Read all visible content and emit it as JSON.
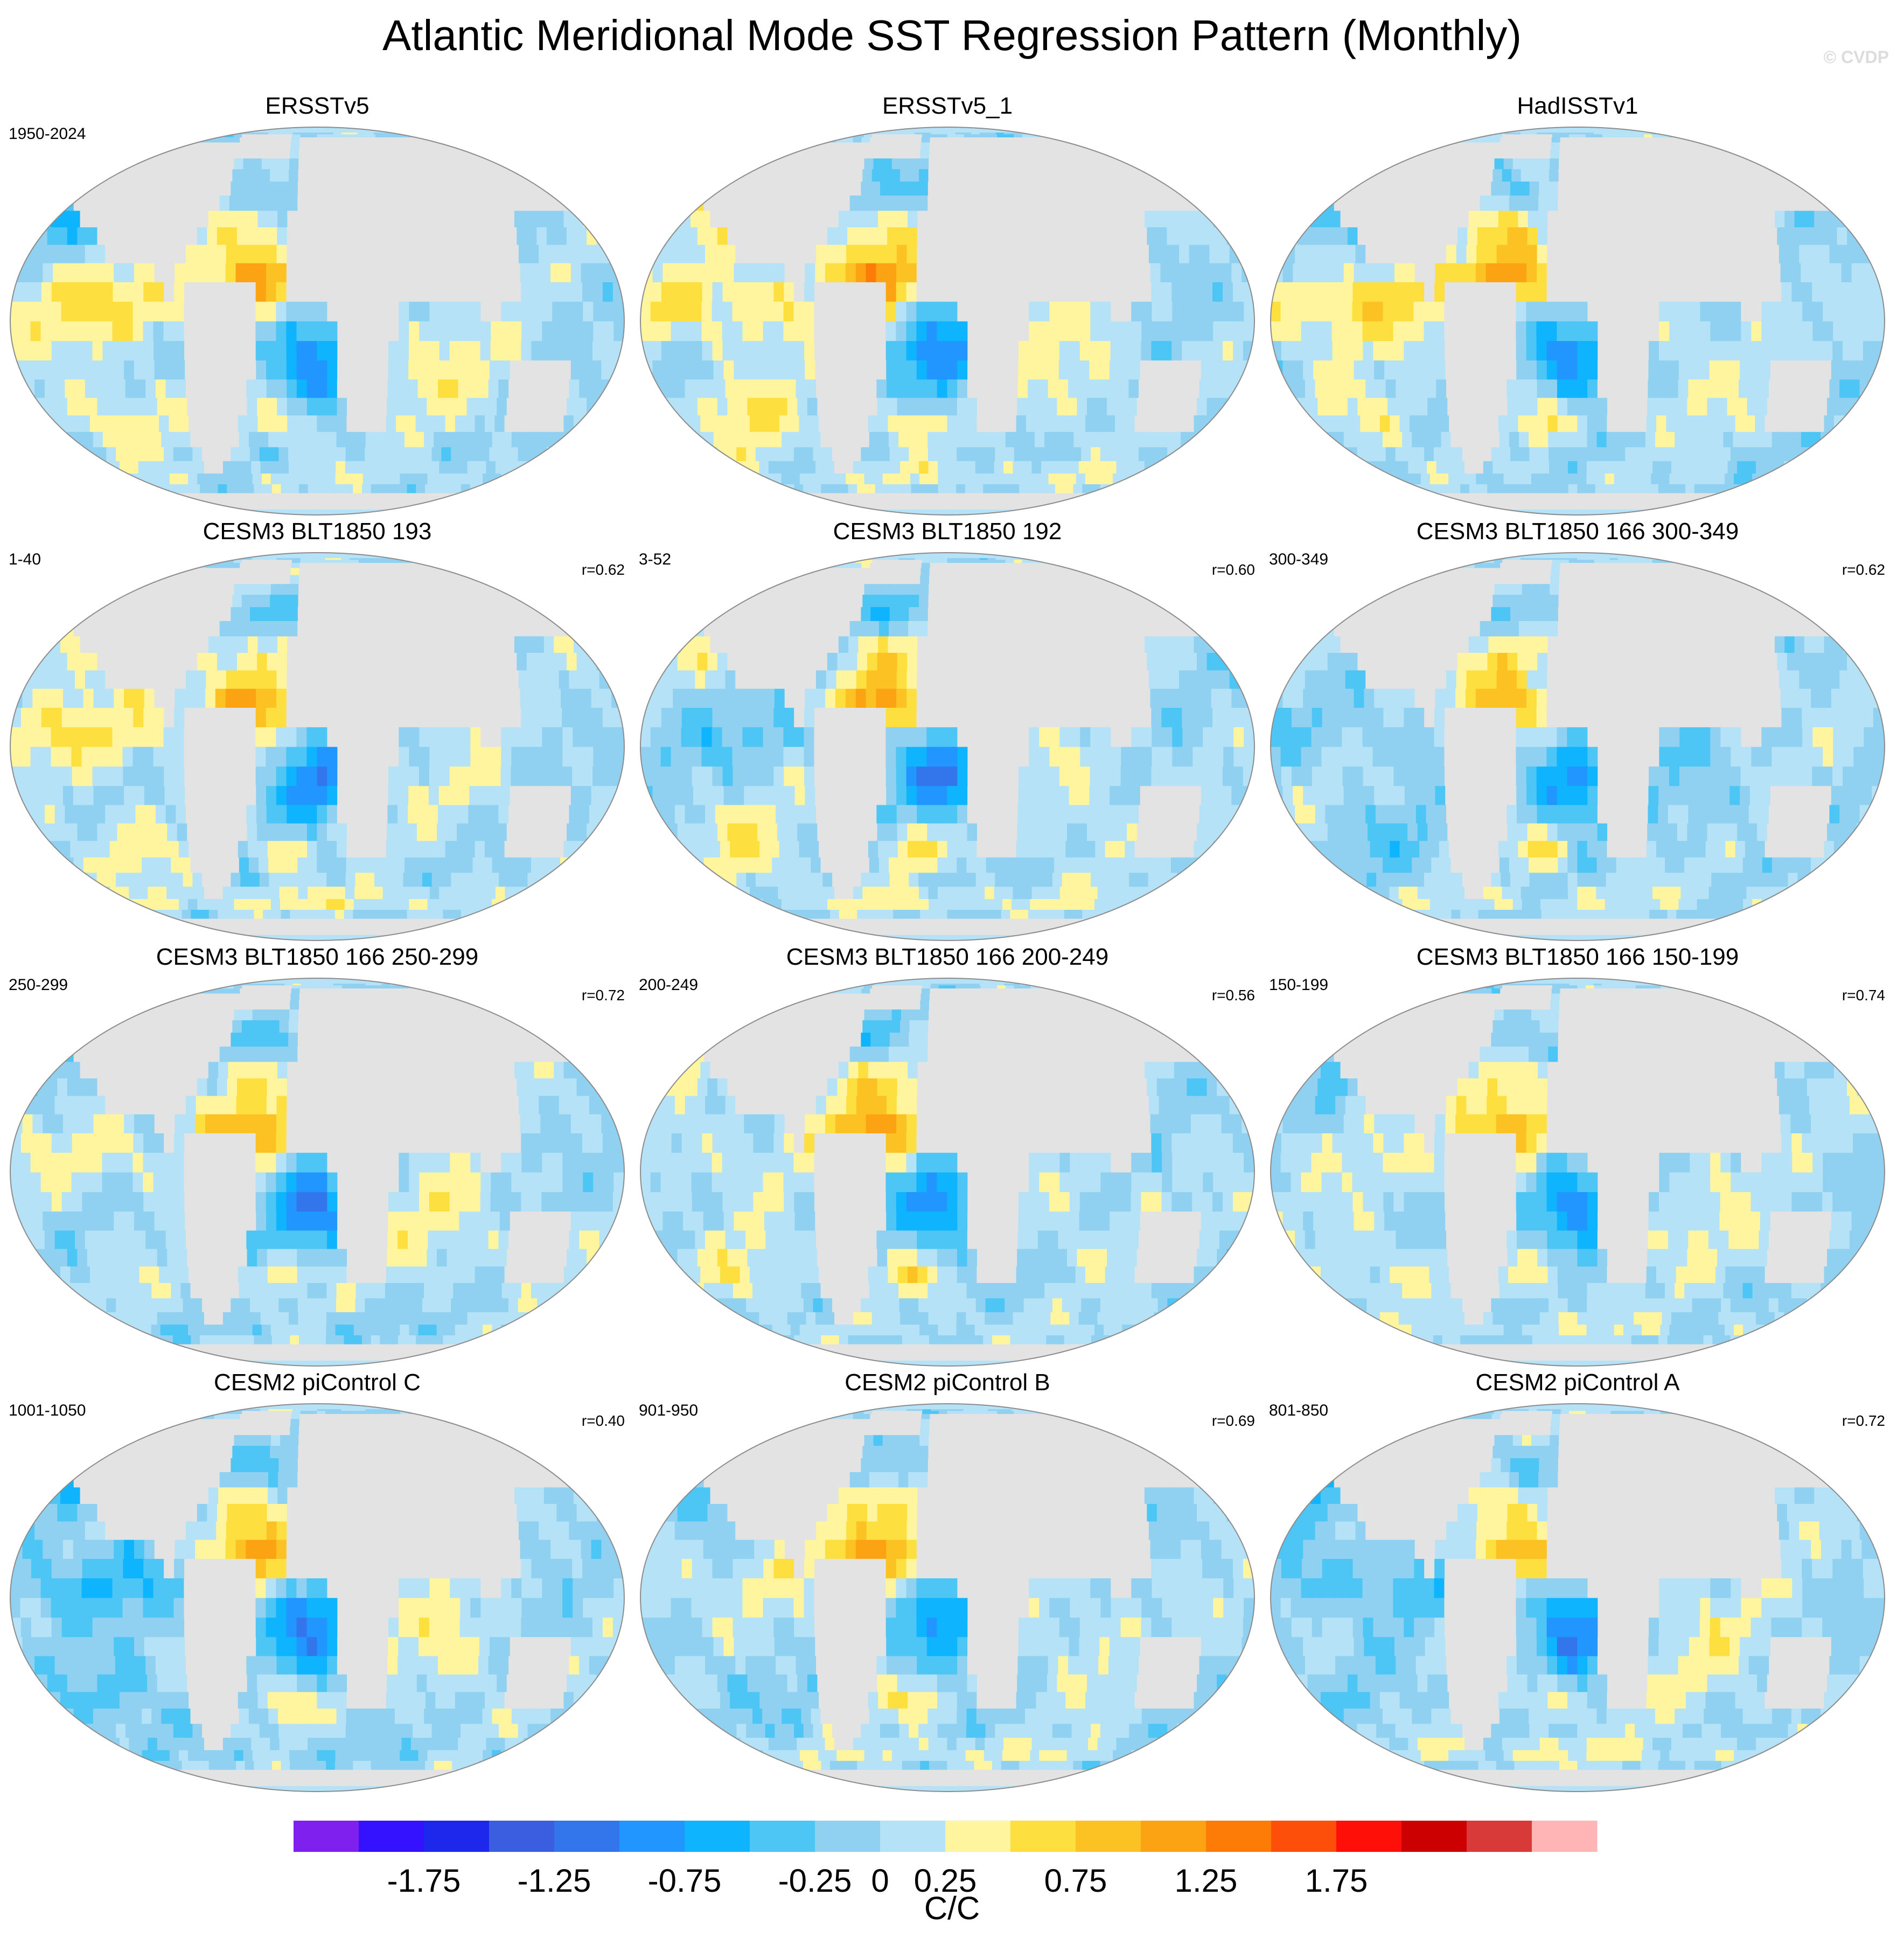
{
  "title": "Atlantic Meridional Mode SST Regression Pattern (Monthly)",
  "copyright": "© CVDP",
  "colors": {
    "land": "#e3e3e3",
    "coast": "#8c8c8c",
    "palette": [
      "#7f20ee",
      "#3412ff",
      "#1d28ec",
      "#3b5ee0",
      "#3376ec",
      "#2196ff",
      "#0fb4ff",
      "#4dc5f5",
      "#90d1f1",
      "#b5e2f6",
      "#fff59e",
      "#fde040",
      "#fcc223",
      "#fca313",
      "#fd7b07",
      "#fd4f0a",
      "#fe1008",
      "#cc0000",
      "#d83a3a",
      "#ffb5b5"
    ]
  },
  "chart_data": {
    "type": "heatmap",
    "projection": "Robinson",
    "colorbar": {
      "units": "C/C",
      "levels": [
        -2.0,
        -1.75,
        -1.5,
        -1.25,
        -1.0,
        -0.75,
        -0.5,
        -0.25,
        0,
        0.25,
        0.5,
        0.75,
        1.0,
        1.25,
        1.5,
        1.75,
        2.0
      ],
      "tick_labels": [
        "-1.75",
        "-1.25",
        "-0.75",
        "-0.25",
        "0",
        "0.25",
        "0.75",
        "1.25",
        "1.75"
      ],
      "tick_values": [
        -1.75,
        -1.25,
        -0.75,
        -0.25,
        0,
        0.25,
        0.75,
        1.25,
        1.75
      ]
    },
    "panels": [
      {
        "title": "ERSSTv5",
        "period": "1950-2024",
        "corr": "",
        "style": {
          "amp": 1.0,
          "np": -0.45,
          "tp": 0.55,
          "sp": 0.45,
          "io": 0.35,
          "so": 0.15,
          "seed": 1.0
        }
      },
      {
        "title": "ERSSTv5_1",
        "period": "",
        "corr": "",
        "style": {
          "amp": 1.0,
          "np": 0.4,
          "tp": 0.5,
          "sp": 0.5,
          "io": 0.35,
          "so": 0.25,
          "seed": 2.0
        }
      },
      {
        "title": "HadISSTv1",
        "period": "",
        "corr": "",
        "style": {
          "amp": 1.05,
          "np": -0.35,
          "tp": 0.55,
          "sp": 0.35,
          "io": 0.25,
          "so": 0.05,
          "seed": 3.0
        }
      },
      {
        "title": "CESM3 BLT1850 193",
        "period": "1-40",
        "corr": "r=0.62",
        "style": {
          "amp": 1.0,
          "np": 0.6,
          "tp": 0.45,
          "sp": 0.35,
          "io": 0.15,
          "so": 0.35,
          "seed": 4.0
        }
      },
      {
        "title": "CESM3 BLT1850 192",
        "period": "3-52",
        "corr": "r=0.60",
        "style": {
          "amp": 1.0,
          "np": 0.3,
          "tp": -0.25,
          "sp": 0.4,
          "io": 0.3,
          "so": 0.3,
          "seed": 5.0
        }
      },
      {
        "title": "CESM3 BLT1850 166 300-349",
        "period": "300-349",
        "corr": "r=0.62",
        "style": {
          "amp": 1.0,
          "np": 0.15,
          "tp": -0.15,
          "sp": -0.25,
          "io": -0.15,
          "so": 0.2,
          "seed": 6.0
        }
      },
      {
        "title": "CESM3 BLT1850 166 250-299",
        "period": "250-299",
        "corr": "r=0.72",
        "style": {
          "amp": 1.0,
          "np": -0.25,
          "tp": 0.3,
          "sp": 0.15,
          "io": 0.3,
          "so": -0.1,
          "seed": 7.0
        }
      },
      {
        "title": "CESM3 BLT1850 166 200-249",
        "period": "200-249",
        "corr": "r=0.56",
        "style": {
          "amp": 1.0,
          "np": 0.25,
          "tp": 0.2,
          "sp": 0.3,
          "io": 0.2,
          "so": 0.1,
          "seed": 8.0
        }
      },
      {
        "title": "CESM3 BLT1850 166 150-199",
        "period": "150-199",
        "corr": "r=0.74",
        "style": {
          "amp": 1.0,
          "np": -0.25,
          "tp": 0.15,
          "sp": 0.35,
          "io": 0.25,
          "so": 0.2,
          "seed": 9.0
        }
      },
      {
        "title": "CESM2 piControl C",
        "period": "1001-1050",
        "corr": "r=0.40",
        "style": {
          "amp": 1.0,
          "np": -0.55,
          "tp": -0.45,
          "sp": -0.4,
          "io": 0.3,
          "so": -0.15,
          "seed": 10.0
        }
      },
      {
        "title": "CESM2 piControl B",
        "period": "901-950",
        "corr": "r=0.69",
        "style": {
          "amp": 1.0,
          "np": -0.5,
          "tp": 0.25,
          "sp": -0.2,
          "io": 0.25,
          "so": 0.25,
          "seed": 11.0
        }
      },
      {
        "title": "CESM2 piControl A",
        "period": "801-850",
        "corr": "r=0.72",
        "style": {
          "amp": 1.0,
          "np": -0.45,
          "tp": -0.35,
          "sp": -0.1,
          "io": 0.3,
          "so": 0.3,
          "seed": 12.0
        }
      }
    ]
  }
}
